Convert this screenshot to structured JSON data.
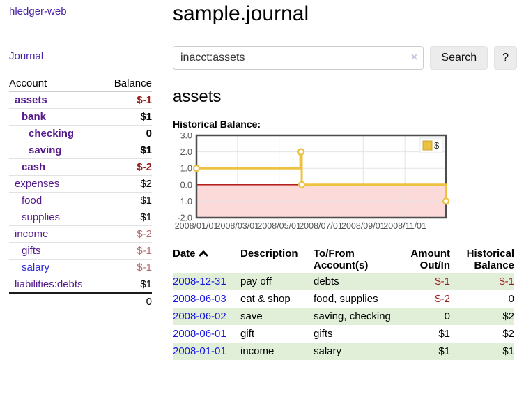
{
  "app": {
    "title": "hledger-web"
  },
  "colors": {
    "link_purple": "#4a23a8",
    "account_purple": "#551a8b",
    "link_blue": "#1616e0",
    "negative_dark": "#961c1c",
    "negative_soft": "#b36a6a",
    "row_green": "#e1efd8",
    "series_gold": "#edc240",
    "zero_line_red": "#aa0000",
    "negative_region_pink": "#fcdada"
  },
  "sidebar": {
    "journal_label": "Journal",
    "accounts_table": {
      "headers": [
        "Account",
        "Balance"
      ],
      "rows": [
        {
          "account": "assets",
          "depth": 1,
          "bold": true,
          "balance": "$-1"
        },
        {
          "account": "bank",
          "depth": 2,
          "bold": true,
          "balance": "$1"
        },
        {
          "account": "checking",
          "depth": 3,
          "bold": true,
          "balance": "0"
        },
        {
          "account": "saving",
          "depth": 3,
          "bold": true,
          "balance": "$1"
        },
        {
          "account": "cash",
          "depth": 2,
          "bold": true,
          "balance": "$-2"
        },
        {
          "account": "expenses",
          "depth": 1,
          "bold": false,
          "balance": "$2"
        },
        {
          "account": "food",
          "depth": 2,
          "bold": false,
          "balance": "$1"
        },
        {
          "account": "supplies",
          "depth": 2,
          "bold": false,
          "balance": "$1"
        },
        {
          "account": "income",
          "depth": 1,
          "bold": false,
          "balance": "$-2"
        },
        {
          "account": "gifts",
          "depth": 2,
          "bold": false,
          "balance": "$-1"
        },
        {
          "account": "salary",
          "depth": 2,
          "bold": false,
          "balance": "$-1"
        },
        {
          "account": "liabilities:debts",
          "depth": 1,
          "bold": false,
          "balance": "$1"
        }
      ],
      "total": "0"
    }
  },
  "main": {
    "title": "sample.journal",
    "search": {
      "value": "inacct:assets",
      "clear_icon": "×",
      "button_label": "Search",
      "help_label": "?"
    },
    "account_heading": "assets",
    "chart_label": "Historical Balance:"
  },
  "chart_data": {
    "type": "line",
    "style": "step",
    "title": "Historical Balance",
    "legend": [
      {
        "label": "$",
        "color": "#edc240"
      }
    ],
    "legend_position": "top-right",
    "grid": true,
    "x_ticks": [
      "2008/01/01",
      "2008/03/01",
      "2008/05/01",
      "2008/07/01",
      "2008/09/01",
      "2008/11/01"
    ],
    "y_ticks": [
      3.0,
      2.0,
      1.0,
      0.0,
      -1.0,
      -2.0
    ],
    "ylim": [
      -2,
      3
    ],
    "xlim": [
      "2008-01-01",
      "2008-12-31"
    ],
    "series": [
      {
        "name": "$",
        "color": "#edc240",
        "points": [
          [
            "2008-01-01",
            1
          ],
          [
            "2008-06-01",
            2
          ],
          [
            "2008-06-02",
            2
          ],
          [
            "2008-06-03",
            0
          ],
          [
            "2008-12-31",
            -1
          ]
        ]
      }
    ],
    "negative_region_color": "#fcdada",
    "zero_line_color": "#aa0000",
    "border_color": "#4d4d4d",
    "grid_color": "#e4e4e4",
    "tick_label_color": "#545454"
  },
  "register": {
    "headers": {
      "date": "Date",
      "description": "Description",
      "accounts": "To/From Account(s)",
      "amount": "Amount Out/In",
      "balance": "Historical Balance"
    },
    "rows": [
      {
        "date": "2008-12-31",
        "description": "pay off",
        "accounts": "debts",
        "amount": "$-1",
        "balance": "$-1"
      },
      {
        "date": "2008-06-03",
        "description": "eat & shop",
        "accounts": "food, supplies",
        "amount": "$-2",
        "balance": "0"
      },
      {
        "date": "2008-06-02",
        "description": "save",
        "accounts": "saving, checking",
        "amount": "0",
        "balance": "$2"
      },
      {
        "date": "2008-06-01",
        "description": "gift",
        "accounts": "gifts",
        "amount": "$1",
        "balance": "$2"
      },
      {
        "date": "2008-01-01",
        "description": "income",
        "accounts": "salary",
        "amount": "$1",
        "balance": "$1"
      }
    ]
  }
}
